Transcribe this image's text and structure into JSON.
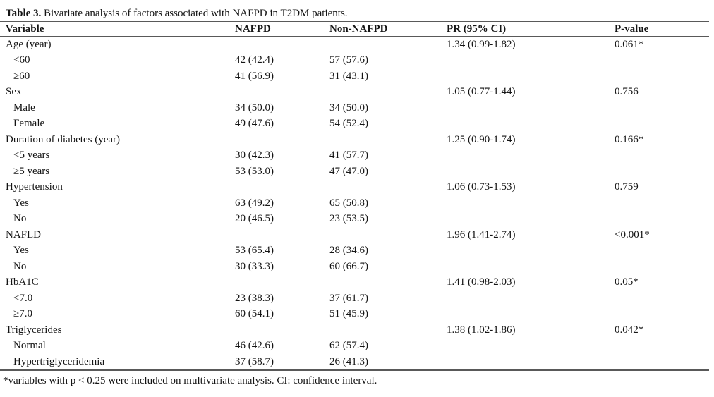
{
  "title": {
    "label": "Table 3.",
    "caption": " Bivariate analysis of factors associated with NAFPD in T2DM patients."
  },
  "colors": {
    "text": "#141414",
    "rule": "#595959",
    "background": "#ffffff"
  },
  "table": {
    "columns": [
      "Variable",
      "NAFPD",
      "Non-NAFPD",
      "PR (95% CI)",
      "P-value"
    ],
    "rows": [
      {
        "variable": "Age (year)",
        "indent": false,
        "nafpd": "",
        "non_nafpd": "",
        "pr": "1.34 (0.99-1.82)",
        "p_value": "0.061*"
      },
      {
        "variable": "<60",
        "indent": true,
        "nafpd": "42 (42.4)",
        "non_nafpd": "57 (57.6)",
        "pr": "",
        "p_value": ""
      },
      {
        "variable": "≥60",
        "indent": true,
        "nafpd": "41 (56.9)",
        "non_nafpd": "31 (43.1)",
        "pr": "",
        "p_value": ""
      },
      {
        "variable": "Sex",
        "indent": false,
        "nafpd": "",
        "non_nafpd": "",
        "pr": "1.05 (0.77-1.44)",
        "p_value": "0.756"
      },
      {
        "variable": "Male",
        "indent": true,
        "nafpd": "34 (50.0)",
        "non_nafpd": "34 (50.0)",
        "pr": "",
        "p_value": ""
      },
      {
        "variable": "Female",
        "indent": true,
        "nafpd": "49 (47.6)",
        "non_nafpd": "54 (52.4)",
        "pr": "",
        "p_value": ""
      },
      {
        "variable": "Duration of diabetes (year)",
        "indent": false,
        "nafpd": "",
        "non_nafpd": "",
        "pr": "1.25 (0.90-1.74)",
        "p_value": "0.166*"
      },
      {
        "variable": "<5 years",
        "indent": true,
        "nafpd": "30 (42.3)",
        "non_nafpd": "41 (57.7)",
        "pr": "",
        "p_value": ""
      },
      {
        "variable": "≥5 years",
        "indent": true,
        "nafpd": "53 (53.0)",
        "non_nafpd": "47 (47.0)",
        "pr": "",
        "p_value": ""
      },
      {
        "variable": "Hypertension",
        "indent": false,
        "nafpd": "",
        "non_nafpd": "",
        "pr": "1.06 (0.73-1.53)",
        "p_value": "0.759"
      },
      {
        "variable": "Yes",
        "indent": true,
        "nafpd": "63 (49.2)",
        "non_nafpd": "65 (50.8)",
        "pr": "",
        "p_value": ""
      },
      {
        "variable": "No",
        "indent": true,
        "nafpd": "20 (46.5)",
        "non_nafpd": "23 (53.5)",
        "pr": "",
        "p_value": ""
      },
      {
        "variable": "NAFLD",
        "indent": false,
        "nafpd": "",
        "non_nafpd": "",
        "pr": "1.96 (1.41-2.74)",
        "p_value": "<0.001*"
      },
      {
        "variable": "Yes",
        "indent": true,
        "nafpd": "53 (65.4)",
        "non_nafpd": "28 (34.6)",
        "pr": "",
        "p_value": ""
      },
      {
        "variable": "No",
        "indent": true,
        "nafpd": "30 (33.3)",
        "non_nafpd": "60 (66.7)",
        "pr": "",
        "p_value": ""
      },
      {
        "variable": "HbA1C",
        "indent": false,
        "nafpd": "",
        "non_nafpd": "",
        "pr": "1.41 (0.98-2.03)",
        "p_value": "0.05*"
      },
      {
        "variable": "<7.0",
        "indent": true,
        "nafpd": "23 (38.3)",
        "non_nafpd": "37 (61.7)",
        "pr": "",
        "p_value": ""
      },
      {
        "variable": "≥7.0",
        "indent": true,
        "nafpd": "60 (54.1)",
        "non_nafpd": "51 (45.9)",
        "pr": "",
        "p_value": ""
      },
      {
        "variable": "Triglycerides",
        "indent": false,
        "nafpd": "",
        "non_nafpd": "",
        "pr": "1.38 (1.02-1.86)",
        "p_value": "0.042*"
      },
      {
        "variable": "Normal",
        "indent": true,
        "nafpd": "46 (42.6)",
        "non_nafpd": "62 (57.4)",
        "pr": "",
        "p_value": ""
      },
      {
        "variable": "Hypertriglyceridemia",
        "indent": true,
        "nafpd": "37 (58.7)",
        "non_nafpd": "26 (41.3)",
        "pr": "",
        "p_value": ""
      }
    ]
  },
  "footnote": "*variables with p < 0.25 were included on multivariate analysis. CI: confidence interval."
}
